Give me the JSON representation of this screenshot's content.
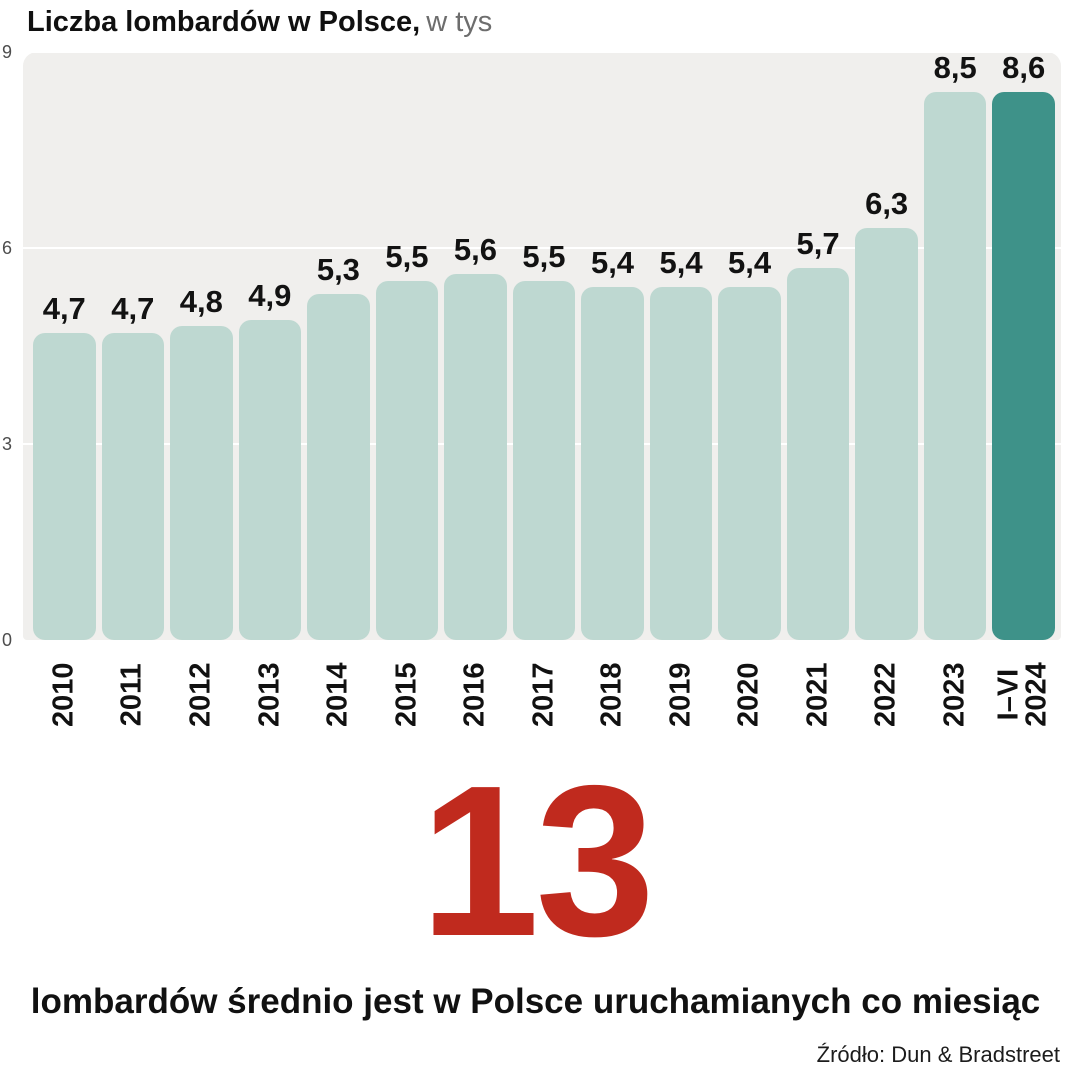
{
  "chart_data": {
    "type": "bar",
    "title": "Liczba lombardów w Polsce,",
    "unit": "w tys",
    "categories": [
      "2010",
      "2011",
      "2012",
      "2013",
      "2014",
      "2015",
      "2016",
      "2017",
      "2018",
      "2019",
      "2020",
      "2021",
      "2022",
      "2023",
      "I–VI\n2024"
    ],
    "values": [
      4.7,
      4.7,
      4.8,
      4.9,
      5.3,
      5.5,
      5.6,
      5.5,
      5.4,
      5.4,
      5.4,
      5.7,
      6.3,
      8.5,
      8.6
    ],
    "value_labels": [
      "4,7",
      "4,7",
      "4,8",
      "4,9",
      "5,3",
      "5,5",
      "5,6",
      "5,5",
      "5,4",
      "5,4",
      "5,4",
      "5,7",
      "6,3",
      "8,5",
      "8,6"
    ],
    "ylim": [
      0,
      9
    ],
    "yticks": [
      0,
      3,
      6,
      9
    ],
    "grid": true,
    "bar_color": "#bed8d1",
    "highlight_color": "#3e9289",
    "highlight_index": 14
  },
  "highlight": {
    "number": "13",
    "number_color": "#c02a1e",
    "caption": "lombardów średnio jest w Polsce uruchamianych co miesiąc"
  },
  "source": "Źródło: Dun & Bradstreet"
}
